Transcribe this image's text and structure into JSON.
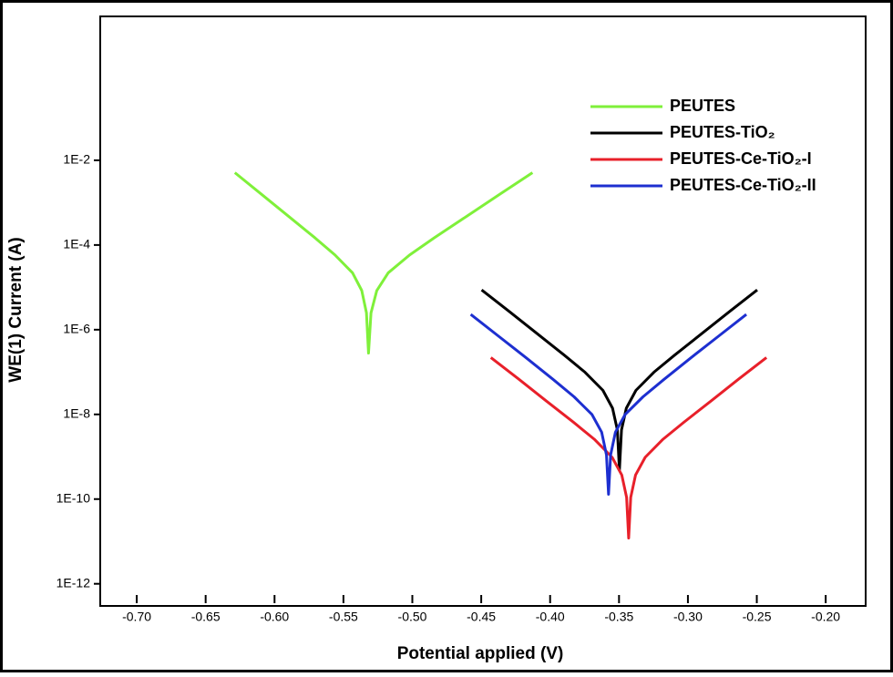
{
  "chart_data": {
    "type": "line",
    "x_label": "Potential applied (V)",
    "y_label": "WE(1) Current (A)",
    "log_y": true,
    "xlim": [
      -0.7265,
      -0.171
    ],
    "ylim": [
      3e-13,
      25
    ],
    "xticks": [
      {
        "value": -0.7,
        "label": "-0.70"
      },
      -0.65,
      {
        "value": -0.6,
        "label": "-0.60"
      },
      -0.55,
      {
        "value": -0.5,
        "label": "-0.50"
      },
      -0.45,
      {
        "value": -0.4,
        "label": "-0.40"
      },
      -0.35,
      {
        "value": -0.3,
        "label": "-0.30"
      },
      -0.25,
      {
        "value": -0.2,
        "label": "-0.20"
      }
    ],
    "yticks": [
      {
        "value": 0.01,
        "label": "1E-2"
      },
      {
        "value": 0.0001,
        "label": "1E-4"
      },
      {
        "value": 1e-06,
        "label": "1E-6"
      },
      {
        "value": 1e-08,
        "label": "1E-8"
      },
      {
        "value": 1e-10,
        "label": "1E-10"
      },
      {
        "value": 1e-12,
        "label": "1E-12"
      }
    ],
    "legend": "upper right",
    "series": [
      {
        "name": "PEUTES",
        "color": "#7ff03a",
        "x": [
          -0.6288,
          -0.6094,
          -0.59,
          -0.5706,
          -0.5561,
          -0.5434,
          -0.5367,
          -0.5333,
          -0.5318,
          -0.53,
          -0.5258,
          -0.5175,
          -0.502,
          -0.4842,
          -0.4604,
          -0.4366,
          -0.4128
        ],
        "values": [
          0.0051,
          0.00157,
          0.00048,
          0.000147,
          5.8e-05,
          2.2e-05,
          8.4e-06,
          2.5e-06,
          2.8e-07,
          2.5e-06,
          8.4e-06,
          2.2e-05,
          5.8e-05,
          0.000147,
          0.00048,
          0.00157,
          0.0051
        ]
      },
      {
        "name": "PEUTES-TiO₂",
        "color": "#000000",
        "x": [
          -0.4497,
          -0.4297,
          -0.4097,
          -0.3897,
          -0.3747,
          -0.3617,
          -0.3547,
          -0.3512,
          -0.3497,
          -0.3482,
          -0.3447,
          -0.3377,
          -0.3247,
          -0.3097,
          -0.2897,
          -0.2697,
          -0.2497
        ],
        "values": [
          8.7e-06,
          2.7e-06,
          8.2e-07,
          2.5e-07,
          9.9e-08,
          3.7e-08,
          1.4e-08,
          4.3e-09,
          4.8e-10,
          4.3e-09,
          1.4e-08,
          3.7e-08,
          9.9e-08,
          2.5e-07,
          8.2e-07,
          2.7e-06,
          8.7e-06
        ]
      },
      {
        "name": "PEUTES-Ce-TiO₂-I",
        "color": "#e8202a",
        "x": [
          -0.443,
          -0.423,
          -0.403,
          -0.383,
          -0.368,
          -0.355,
          -0.348,
          -0.3445,
          -0.343,
          -0.3415,
          -0.338,
          -0.331,
          -0.318,
          -0.303,
          -0.283,
          -0.263,
          -0.243
        ],
        "values": [
          2.2e-07,
          6.9e-08,
          2.1e-08,
          6.5e-09,
          2.6e-09,
          9.7e-10,
          3.7e-10,
          1.1e-10,
          1.2e-11,
          1.1e-10,
          3.7e-10,
          9.7e-10,
          2.6e-09,
          6.5e-09,
          2.1e-08,
          6.9e-08,
          2.2e-07
        ]
      },
      {
        "name": "PEUTES-Ce-TiO₂-II",
        "color": "#1d2fd0",
        "x": [
          -0.4576,
          -0.4376,
          -0.4176,
          -0.3976,
          -0.3826,
          -0.3696,
          -0.3626,
          -0.3591,
          -0.3576,
          -0.3561,
          -0.3526,
          -0.3456,
          -0.3326,
          -0.3176,
          -0.2976,
          -0.2776,
          -0.2576
        ],
        "values": [
          2.3e-06,
          7.1e-07,
          2.2e-07,
          6.6e-08,
          2.6e-08,
          9.9e-09,
          3.8e-09,
          1.1e-09,
          1.3e-10,
          1.1e-09,
          3.8e-09,
          9.9e-09,
          2.6e-08,
          6.6e-08,
          2.2e-07,
          7.1e-07,
          2.3e-06
        ]
      }
    ]
  }
}
